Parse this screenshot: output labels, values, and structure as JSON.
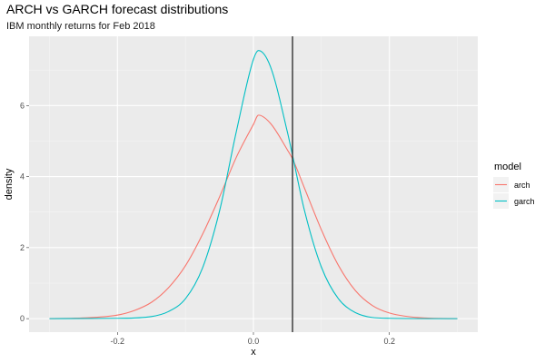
{
  "chart_data": {
    "type": "line",
    "title": "ARCH vs GARCH forecast distributions",
    "subtitle": "IBM monthly returns for Feb 2018",
    "xlabel": "x",
    "ylabel": "density",
    "xlim": [
      -0.33,
      0.33
    ],
    "ylim": [
      -0.38,
      7.95
    ],
    "x_ticks": [
      -0.2,
      0.0,
      0.2
    ],
    "x_tick_labels": [
      "-0.2",
      "0.0",
      "0.2"
    ],
    "y_ticks": [
      0,
      2,
      4,
      6
    ],
    "y_tick_labels": [
      "0",
      "2",
      "4",
      "6"
    ],
    "grid": true,
    "legend": {
      "title": "model",
      "position": "right"
    },
    "vline": {
      "x": 0.0575,
      "color": "#333333"
    },
    "series": [
      {
        "name": "arch",
        "color": "#F8766D",
        "x": [
          -0.3,
          -0.25,
          -0.2,
          -0.175,
          -0.15,
          -0.125,
          -0.1,
          -0.075,
          -0.05,
          -0.025,
          0.0,
          0.0075,
          0.025,
          0.05,
          0.0575,
          0.075,
          0.1,
          0.125,
          0.15,
          0.175,
          0.2,
          0.25,
          0.3
        ],
        "y": [
          0.0,
          0.02,
          0.1,
          0.23,
          0.46,
          0.87,
          1.49,
          2.37,
          3.42,
          4.55,
          5.47,
          5.73,
          5.5,
          4.75,
          4.5,
          3.68,
          2.5,
          1.5,
          0.79,
          0.37,
          0.16,
          0.02,
          0.0
        ]
      },
      {
        "name": "garch",
        "color": "#00BFC4",
        "x": [
          -0.3,
          -0.2,
          -0.15,
          -0.125,
          -0.1,
          -0.075,
          -0.05,
          -0.025,
          0.0,
          0.0075,
          0.025,
          0.05,
          0.0575,
          0.075,
          0.1,
          0.125,
          0.15,
          0.2,
          0.3
        ],
        "y": [
          0.0,
          0.01,
          0.06,
          0.2,
          0.56,
          1.42,
          3.02,
          5.28,
          7.3,
          7.55,
          7.1,
          5.25,
          4.6,
          3.05,
          1.45,
          0.56,
          0.17,
          0.01,
          0.0
        ]
      }
    ]
  }
}
